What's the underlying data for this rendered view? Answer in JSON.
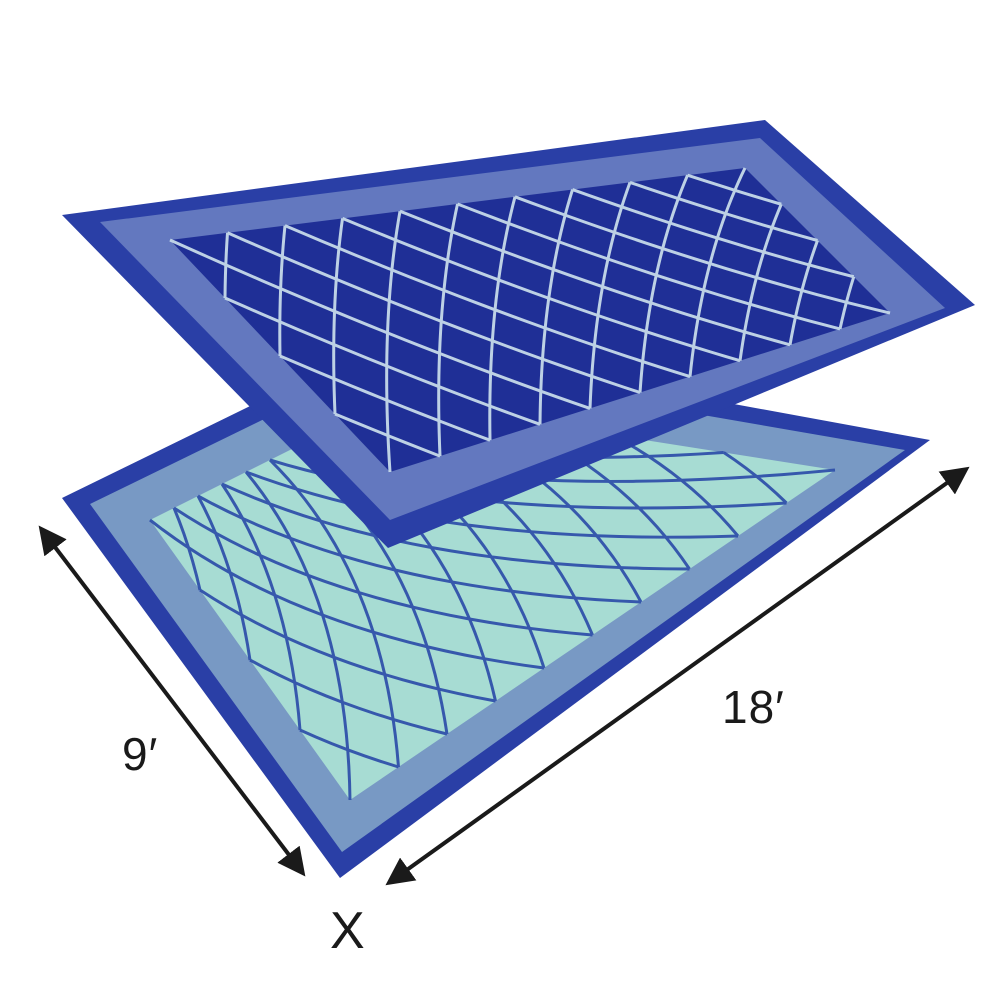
{
  "product": {
    "top_mat_side": "reversible-side-blue",
    "bottom_mat_side": "reversible-side-teal",
    "width_label": "9′",
    "length_label": "18′",
    "separator_label": "X"
  },
  "colors": {
    "background": "#ffffff",
    "blue_field": "#1f2f96",
    "blue_border": "#2a3fa6",
    "blue_pattern": "#cfe3ee",
    "teal_field": "#a7dcd3",
    "teal_border": "#1c3c9e",
    "teal_pattern": "#2a4aa8",
    "arrow": "#1a1a1a"
  }
}
